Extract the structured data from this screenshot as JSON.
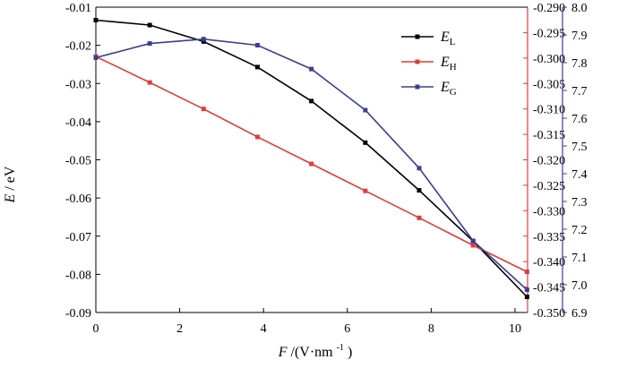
{
  "chart_data": {
    "type": "line",
    "x": [
      0,
      1.286,
      2.571,
      3.857,
      5.143,
      6.429,
      7.714,
      9.0,
      10.286
    ],
    "xlim": [
      0,
      10.3
    ],
    "xticks": [
      "0",
      "2",
      "4",
      "6",
      "8",
      "10"
    ],
    "xlabel": {
      "var": "F",
      "unit": "/(V·nm",
      "sup": "-1",
      "close": ")"
    },
    "ylabel": {
      "var": "E",
      "unit": "/ eV"
    },
    "axes": {
      "left": {
        "ylim": [
          -0.09,
          -0.01
        ],
        "ticks": [
          "-0.01",
          "-0.02",
          "-0.03",
          "-0.04",
          "-0.05",
          "-0.06",
          "-0.07",
          "-0.08",
          "-0.09"
        ],
        "color": "#000000"
      },
      "right1": {
        "ylim": [
          -0.35,
          -0.29
        ],
        "ticks": [
          "-0.290",
          "-0.295",
          "-0.300",
          "-0.305",
          "-0.310",
          "-0.315",
          "-0.320",
          "-0.325",
          "-0.330",
          "-0.335",
          "-0.340",
          "-0.345",
          "-0.350"
        ],
        "color": "#e03c3c"
      },
      "right2": {
        "ylim": [
          6.9,
          8.0
        ],
        "ticks": [
          "8.0",
          "7.9",
          "7.8",
          "7.7",
          "7.6",
          "7.5",
          "7.4",
          "7.3",
          "7.2",
          "7.1",
          "7.0",
          "6.9"
        ],
        "color": "#3a3f8f"
      }
    },
    "series": [
      {
        "name": "E",
        "sub": "L",
        "axis": "left",
        "color": "#000000",
        "values": [
          -0.0134,
          -0.0147,
          -0.019,
          -0.0257,
          -0.0346,
          -0.0455,
          -0.058,
          -0.0713,
          -0.0859
        ]
      },
      {
        "name": "E",
        "sub": "H",
        "axis": "right1",
        "color": "#e03c3c",
        "values": [
          -0.2997,
          -0.3048,
          -0.31,
          -0.3155,
          -0.3208,
          -0.3261,
          -0.3314,
          -0.3368,
          -0.342
        ]
      },
      {
        "name": "E",
        "sub": "G",
        "axis": "right2",
        "color": "#3a3f8f",
        "values": [
          7.818,
          7.869,
          7.885,
          7.863,
          7.777,
          7.629,
          7.42,
          7.158,
          6.982
        ]
      }
    ],
    "legend": "top-right",
    "grid": false
  }
}
